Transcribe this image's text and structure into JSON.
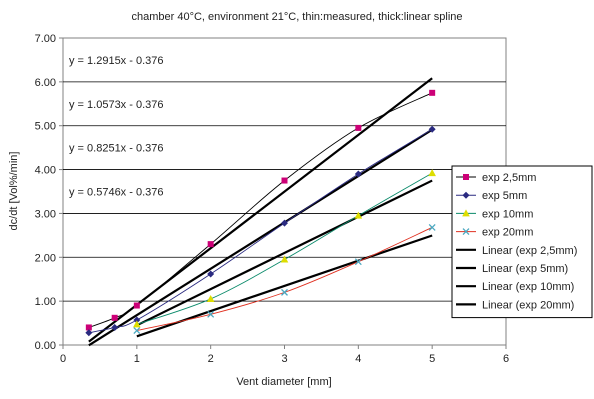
{
  "chart_data": {
    "type": "line",
    "title": "chamber 40°C, environment 21°C, thin:measured, thick:linear spline",
    "xlabel": "Vent diameter [mm]",
    "ylabel": "dc/dt [Vol%/min]",
    "xlim": [
      0,
      6
    ],
    "ylim": [
      0,
      7
    ],
    "x_ticks": [
      "0",
      "1",
      "2",
      "3",
      "4",
      "5",
      "6"
    ],
    "y_ticks": [
      "0.00",
      "1.00",
      "2.00",
      "3.00",
      "4.00",
      "5.00",
      "6.00",
      "7.00"
    ],
    "grid": "horizontal",
    "legend_position": "right",
    "series": [
      {
        "name": "exp 2,5mm",
        "marker": "square",
        "color": "#cc0077",
        "x": [
          0.35,
          0.7,
          1,
          2,
          3,
          4,
          5
        ],
        "y": [
          0.4,
          0.62,
          0.9,
          2.3,
          3.75,
          4.95,
          5.75
        ]
      },
      {
        "name": "exp 5mm",
        "marker": "diamond",
        "color": "#2a2a80",
        "x": [
          0.35,
          0.7,
          1,
          2,
          3,
          4,
          5
        ],
        "y": [
          0.28,
          0.4,
          0.57,
          1.62,
          2.78,
          3.9,
          4.92
        ]
      },
      {
        "name": "exp 10mm",
        "marker": "triangle",
        "color": "#dddd00",
        "x": [
          1,
          2,
          3,
          4,
          5
        ],
        "y": [
          0.47,
          1.05,
          1.95,
          2.95,
          3.92
        ]
      },
      {
        "name": "exp 20mm",
        "marker": "x",
        "color": "#4aa8c0",
        "x": [
          1,
          2,
          3,
          4,
          5
        ],
        "y": [
          0.33,
          0.7,
          1.2,
          1.9,
          2.68
        ]
      }
    ],
    "trendlines": [
      {
        "name": "Linear (exp 2,5mm)",
        "slope": 1.2915,
        "intercept": -0.376,
        "x_range": [
          0.35,
          5
        ],
        "equation": "y = 1.2915x - 0.376"
      },
      {
        "name": "Linear (exp 5mm)",
        "slope": 1.0573,
        "intercept": -0.376,
        "x_range": [
          0.35,
          5
        ],
        "equation": "y = 1.0573x - 0.376"
      },
      {
        "name": "Linear (exp 10mm)",
        "slope": 0.8251,
        "intercept": -0.376,
        "x_range": [
          1,
          5
        ],
        "equation": "y = 0.8251x - 0.376"
      },
      {
        "name": "Linear (exp 20mm)",
        "slope": 0.5746,
        "intercept": -0.376,
        "x_range": [
          1,
          5
        ],
        "equation": "y = 0.5746x - 0.376"
      }
    ]
  }
}
